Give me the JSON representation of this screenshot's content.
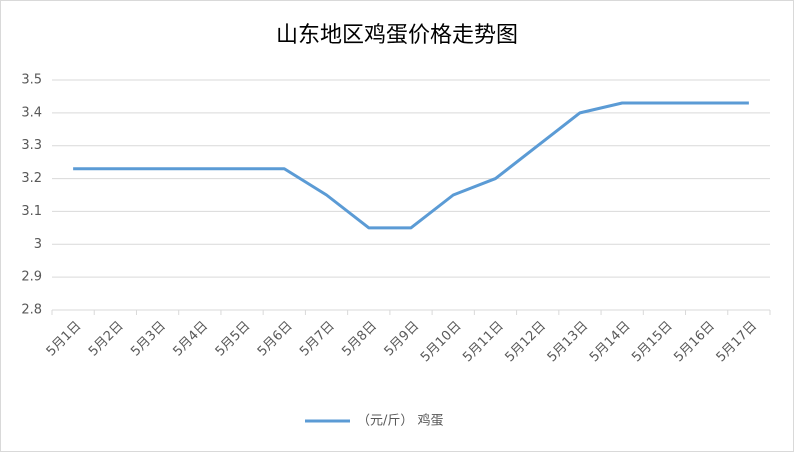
{
  "chart_data": {
    "type": "line",
    "title": "山东地区鸡蛋价格走势图",
    "categories": [
      "5月1日",
      "5月2日",
      "5月3日",
      "5月4日",
      "5月5日",
      "5月6日",
      "5月7日",
      "5月8日",
      "5月9日",
      "5月10日",
      "5月11日",
      "5月12日",
      "5月13日",
      "5月14日",
      "5月15日",
      "5月16日",
      "5月17日"
    ],
    "series": [
      {
        "name": "（元/斤） 鸡蛋",
        "color": "#5b9bd5",
        "values": [
          3.23,
          3.23,
          3.23,
          3.23,
          3.23,
          3.23,
          3.15,
          3.05,
          3.05,
          3.15,
          3.2,
          3.3,
          3.4,
          3.43,
          3.43,
          3.43,
          3.43
        ]
      }
    ],
    "ylim": [
      2.8,
      3.5
    ],
    "yticks": [
      2.8,
      2.9,
      3,
      3.1,
      3.2,
      3.3,
      3.4,
      3.5
    ],
    "grid": true,
    "legend": "bottom"
  }
}
